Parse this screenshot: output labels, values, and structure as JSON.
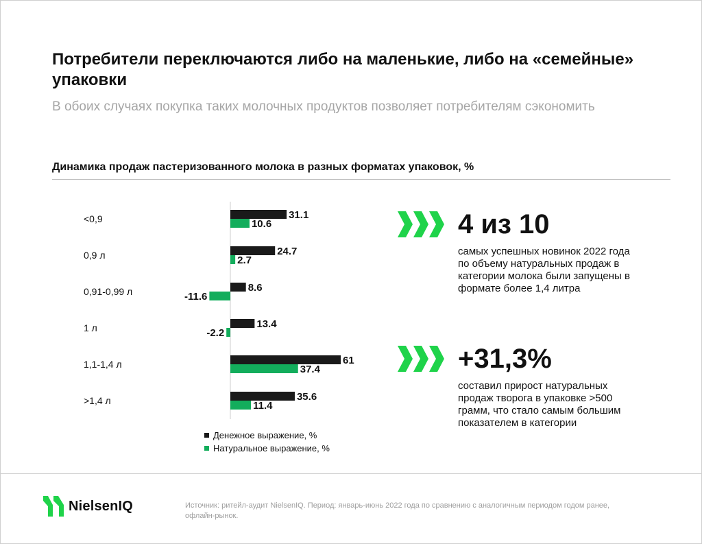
{
  "title": "Потребители переключаются либо на маленькие, либо на «семейные» упаковки",
  "subtitle": "В обоих случаях покупка таких молочных продуктов позволяет потребителям сэкономить",
  "colors": {
    "series_money": "#1a1a1a",
    "series_volume": "#13ad5c",
    "accent": "#1fd34a",
    "subtitle": "#a6a6a6"
  },
  "chart_data": {
    "type": "bar",
    "orientation": "horizontal",
    "title": "Динамика продаж пастеризованного молока в разных форматах упаковок, %",
    "categories": [
      "<0,9",
      "0,9 л",
      "0,91-0,99 л",
      "1 л",
      "1,1-1,4 л",
      ">1,4 л"
    ],
    "series": [
      {
        "name": "Денежное выражение, %",
        "values": [
          31.1,
          24.7,
          8.6,
          13.4,
          61,
          35.6
        ]
      },
      {
        "name": "Натуральное выражение, %",
        "values": [
          10.6,
          2.7,
          -11.6,
          -2.2,
          37.4,
          11.4
        ]
      }
    ],
    "data_labels": true,
    "grid": false,
    "legend": "bottom"
  },
  "stats": [
    {
      "value": "4 из 10",
      "text": "самых успешных новинок 2022 года по объему натуральных продаж в категории молока были запущены в формате более 1,4 литра",
      "icon": "triple-chevron-right-icon"
    },
    {
      "value": "+31,3%",
      "text": "составил прирост натуральных продаж творога в упаковке >500 грамм, что стало самым большим показателем в категории",
      "icon": "triple-chevron-right-icon"
    }
  ],
  "footer": {
    "logo_text": "NielsenIQ",
    "source": "Источник: ритейл-аудит NielsenIQ. Период: январь-июнь 2022 года по сравнению с аналогичным периодом годом ранее, офлайн-рынок."
  }
}
